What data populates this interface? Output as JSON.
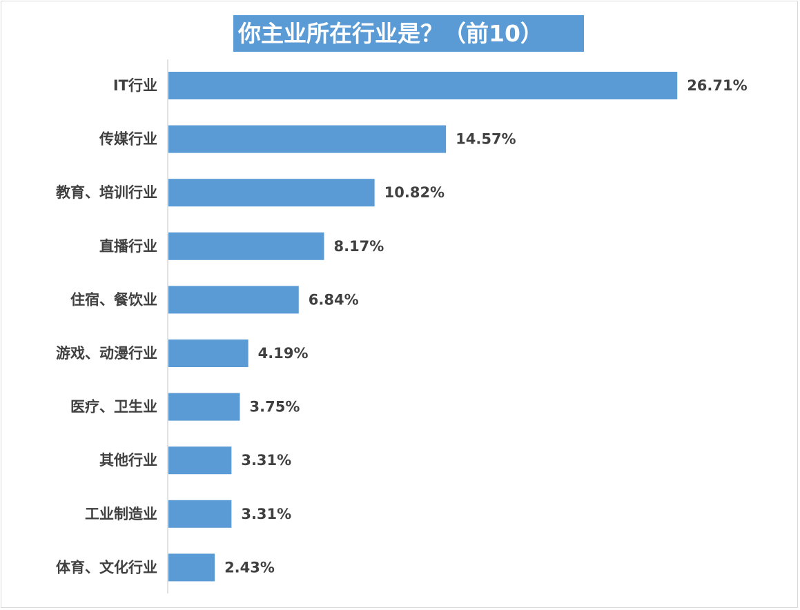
{
  "chart_data": {
    "type": "bar",
    "orientation": "horizontal",
    "title": "你主业所在行业是？（前10）",
    "categories": [
      "IT行业",
      "传媒行业",
      "教育、培训行业",
      "直播行业",
      "住宿、餐饮业",
      "游戏、动漫行业",
      "医疗、卫生业",
      "其他行业",
      "工业制造业",
      "体育、文化行业"
    ],
    "values": [
      26.71,
      14.57,
      10.82,
      8.17,
      6.84,
      4.19,
      3.75,
      3.31,
      3.31,
      2.43
    ],
    "value_labels": [
      "26.71%",
      "14.57%",
      "10.82%",
      "8.17%",
      "6.84%",
      "4.19%",
      "3.75%",
      "3.31%",
      "3.31%",
      "2.43%"
    ],
    "unit": "%",
    "grid": false,
    "legend": "none",
    "colors": {
      "bar": "#5b9bd5",
      "title_bg": "#5b9bd5",
      "title_text": "#ffffff",
      "label_text": "#404040",
      "axis": "#d9d9d9"
    }
  }
}
